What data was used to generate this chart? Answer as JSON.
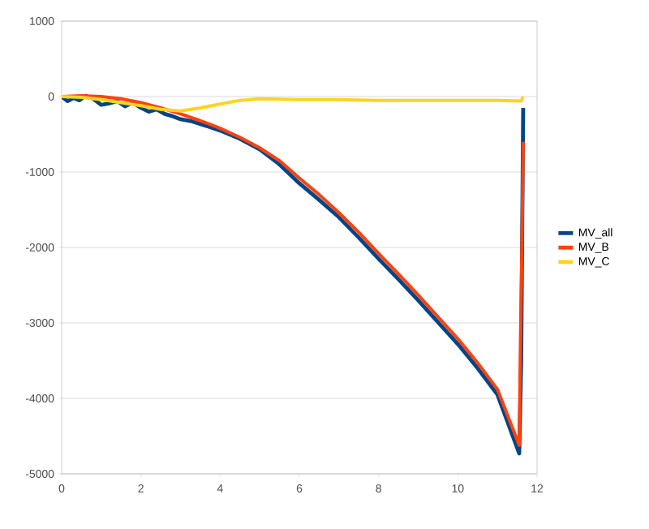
{
  "chart_data": {
    "type": "line",
    "xlim": [
      0,
      12
    ],
    "ylim": [
      -5000,
      1000
    ],
    "xticks": [
      0,
      2,
      4,
      6,
      8,
      10,
      12
    ],
    "yticks": [
      -5000,
      -4000,
      -3000,
      -2000,
      -1000,
      0,
      1000
    ],
    "grid": "y",
    "legend": "right",
    "marker": "none",
    "line_style": "solid",
    "series": [
      {
        "name": "MV_all",
        "color": "#004586",
        "x": [
          0,
          0.15,
          0.3,
          0.45,
          0.6,
          0.8,
          1.0,
          1.2,
          1.4,
          1.6,
          1.8,
          2.0,
          2.2,
          2.4,
          2.6,
          2.8,
          3.0,
          3.3,
          3.6,
          4.0,
          4.5,
          5,
          5.5,
          6,
          6.5,
          7,
          7.5,
          8,
          8.5,
          9,
          9.5,
          10,
          10.5,
          11,
          11.55,
          11.6,
          11.65
        ],
        "values": [
          0,
          -60,
          -20,
          -50,
          10,
          -30,
          -110,
          -90,
          -60,
          -130,
          -80,
          -150,
          -200,
          -170,
          -230,
          -260,
          -300,
          -330,
          -380,
          -450,
          -560,
          -700,
          -900,
          -1150,
          -1370,
          -1600,
          -1870,
          -2150,
          -2420,
          -2700,
          -2990,
          -3280,
          -3600,
          -3950,
          -4730,
          -3500,
          -150
        ]
      },
      {
        "name": "MV_B",
        "color": "#ff420e",
        "x": [
          0,
          0.5,
          1,
          1.5,
          2,
          2.5,
          3,
          3.5,
          4,
          4.5,
          5,
          5.5,
          6,
          6.5,
          7,
          7.5,
          8,
          8.5,
          9,
          9.5,
          10,
          10.5,
          11,
          11.55,
          11.58,
          11.62,
          11.65
        ],
        "values": [
          0,
          10,
          0,
          -30,
          -80,
          -150,
          -230,
          -320,
          -420,
          -540,
          -680,
          -850,
          -1080,
          -1300,
          -1540,
          -1800,
          -2080,
          -2350,
          -2630,
          -2920,
          -3210,
          -3530,
          -3880,
          -4620,
          -3300,
          -1900,
          -600
        ]
      },
      {
        "name": "MV_C",
        "color": "#ffd320",
        "x": [
          0,
          0.5,
          1,
          1.5,
          2,
          2.5,
          3,
          3.5,
          4,
          4.5,
          5,
          6,
          7,
          8,
          9,
          10,
          11,
          11.6,
          11.65
        ],
        "values": [
          0,
          -10,
          -40,
          -80,
          -120,
          -170,
          -190,
          -150,
          -100,
          -50,
          -30,
          -40,
          -40,
          -50,
          -50,
          -50,
          -50,
          -60,
          0
        ]
      }
    ]
  }
}
